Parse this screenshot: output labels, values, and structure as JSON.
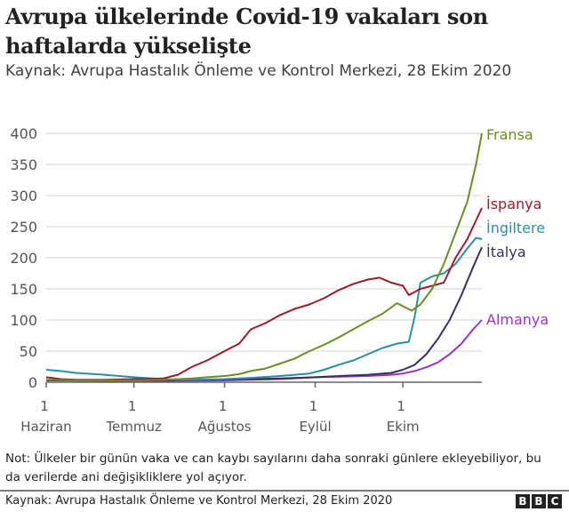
{
  "header": {
    "title": "Avrupa ülkelerinde Covid-19 vakaları son haftalarda yükselişte",
    "subtitle": "Kaynak: Avrupa Hastalık Önleme ve Kontrol Merkezi, 28 Ekim 2020"
  },
  "footer": {
    "note": "Not: Ülkeler bir günün vaka ve can kaybı sayılarını daha sonraki günlere ekleyebiliyor, bu da verilerde ani değişikliklere yol açıyor.",
    "source": "Kaynak: Avrupa Hastalık Önleme ve Kontrol Merkezi, 28 Ekim 2020",
    "logo": [
      "B",
      "B",
      "C"
    ]
  },
  "chart_data": {
    "type": "line",
    "title": "Avrupa ülkelerinde Covid-19 vakaları son haftalarda yükselişte",
    "subtitle": "Kaynak: Avrupa Hastalık Önleme ve Kontrol Merkezi, 28 Ekim 2020",
    "xlabel": "",
    "ylabel": "",
    "ylim": [
      0,
      400
    ],
    "yticks": [
      0,
      50,
      100,
      150,
      200,
      250,
      300,
      350,
      400
    ],
    "grid": true,
    "legend_position": "inline-right",
    "x_unit": "day index (0 = 1 Haziran)",
    "xticks": [
      {
        "day": 0,
        "top": "1",
        "bottom": "Haziran"
      },
      {
        "day": 30,
        "top": "1",
        "bottom": "Temmuz"
      },
      {
        "day": 61,
        "top": "1",
        "bottom": "Ağustos"
      },
      {
        "day": 92,
        "top": "1",
        "bottom": "Eylül"
      },
      {
        "day": 122,
        "top": "1",
        "bottom": "Ekim"
      }
    ],
    "xlim": [
      0,
      149
    ],
    "series": [
      {
        "name": "Fransa",
        "color": "#6b8e23",
        "x": [
          0,
          10,
          20,
          30,
          40,
          50,
          55,
          61,
          66,
          70,
          75,
          80,
          85,
          90,
          95,
          100,
          105,
          110,
          115,
          120,
          125,
          128,
          132,
          136,
          140,
          144,
          147,
          149
        ],
        "values": [
          4,
          3,
          3,
          3,
          4,
          6,
          8,
          10,
          13,
          18,
          22,
          30,
          38,
          50,
          60,
          72,
          85,
          98,
          110,
          127,
          115,
          125,
          150,
          190,
          240,
          290,
          350,
          400
        ]
      },
      {
        "name": "İspanya",
        "color": "#9b1c2c",
        "x": [
          0,
          5,
          10,
          20,
          30,
          40,
          45,
          50,
          55,
          61,
          66,
          70,
          75,
          80,
          85,
          90,
          95,
          100,
          105,
          110,
          114,
          118,
          122,
          124,
          128,
          132,
          136,
          140,
          144,
          147,
          149
        ],
        "values": [
          8,
          5,
          4,
          4,
          5,
          6,
          12,
          25,
          35,
          50,
          62,
          85,
          95,
          108,
          118,
          125,
          135,
          148,
          158,
          165,
          168,
          160,
          155,
          140,
          150,
          155,
          160,
          200,
          230,
          260,
          280
        ]
      },
      {
        "name": "İngiltere",
        "color": "#2a8fa6",
        "x": [
          0,
          5,
          10,
          20,
          30,
          40,
          45,
          50,
          61,
          70,
          80,
          90,
          95,
          100,
          105,
          110,
          115,
          120,
          124,
          126,
          128,
          132,
          136,
          140,
          144,
          147,
          149
        ],
        "values": [
          20,
          18,
          15,
          12,
          8,
          5,
          4,
          4,
          5,
          7,
          10,
          14,
          20,
          28,
          35,
          45,
          55,
          62,
          65,
          105,
          160,
          170,
          175,
          190,
          215,
          232,
          230
        ]
      },
      {
        "name": "İtalya",
        "color": "#3a3060",
        "x": [
          0,
          20,
          40,
          61,
          80,
          92,
          100,
          110,
          118,
          122,
          126,
          130,
          134,
          138,
          142,
          146,
          149
        ],
        "values": [
          3,
          3,
          3,
          4,
          6,
          8,
          10,
          12,
          15,
          20,
          28,
          45,
          70,
          100,
          140,
          185,
          217
        ]
      },
      {
        "name": "Almanya",
        "color": "#9932cc",
        "x": [
          0,
          20,
          40,
          61,
          80,
          92,
          100,
          110,
          118,
          122,
          126,
          130,
          134,
          138,
          142,
          146,
          149
        ],
        "values": [
          3,
          2,
          2,
          3,
          5,
          8,
          9,
          10,
          12,
          14,
          18,
          24,
          32,
          45,
          62,
          85,
          100
        ]
      }
    ]
  }
}
